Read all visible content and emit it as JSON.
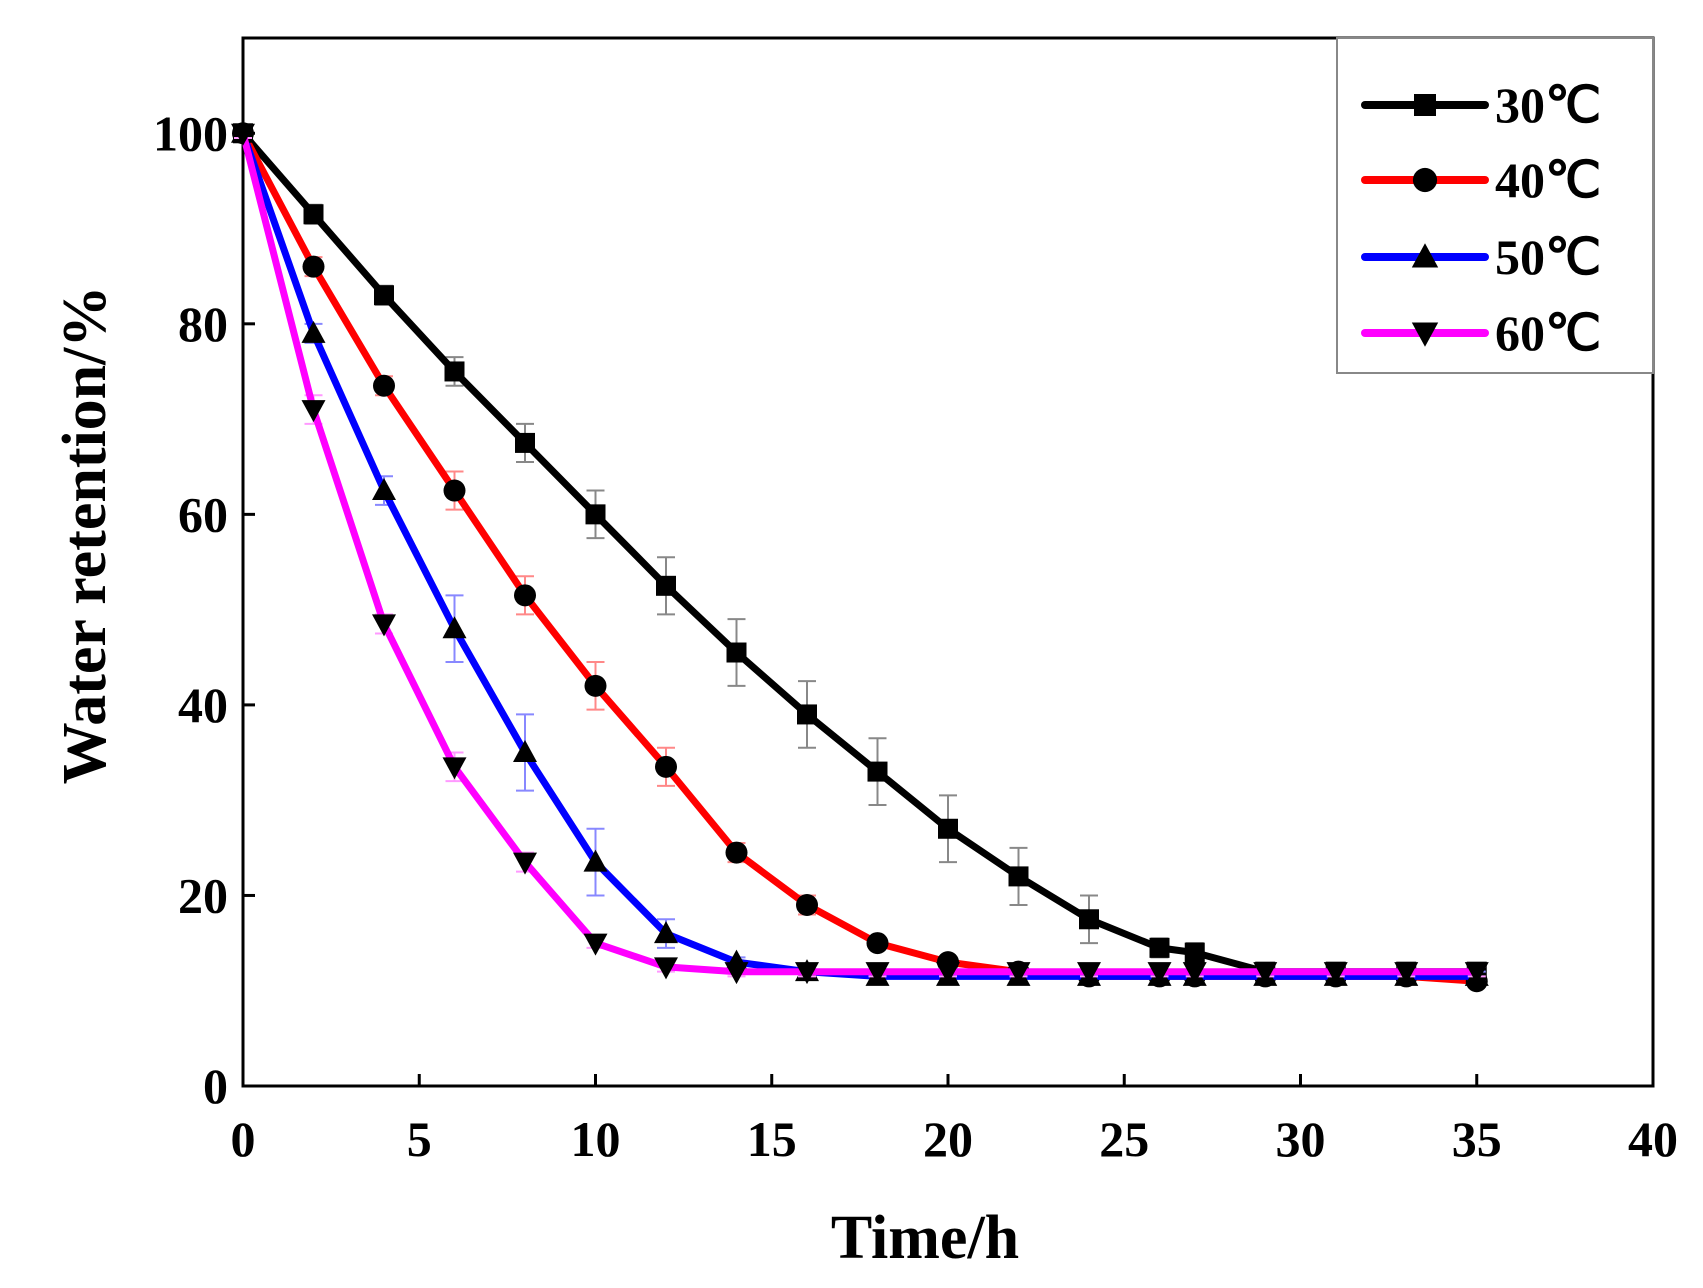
{
  "chart_data": {
    "type": "line",
    "title": "",
    "xlabel": "Time/h",
    "ylabel": "Water retention/%",
    "xlim": [
      0,
      40
    ],
    "ylim": [
      0,
      110
    ],
    "xticks": [
      0,
      5,
      10,
      15,
      20,
      25,
      30,
      35,
      40
    ],
    "yticks": [
      0,
      20,
      40,
      60,
      80,
      100
    ],
    "grid": false,
    "legend_position": "top-right",
    "series": [
      {
        "name": "30℃",
        "color": "#000000",
        "marker": "square",
        "error_color": "#888888",
        "x": [
          0,
          2,
          4,
          6,
          8,
          10,
          12,
          14,
          16,
          18,
          20,
          22,
          24,
          26,
          27,
          29,
          31,
          33,
          35
        ],
        "y": [
          100,
          91.5,
          83,
          75,
          67.5,
          60,
          52.5,
          45.5,
          39,
          33,
          27,
          22,
          17.5,
          14.5,
          14,
          12,
          12,
          12,
          12
        ],
        "err": [
          0.5,
          1,
          1,
          1.5,
          2,
          2.5,
          3,
          3.5,
          3.5,
          3.5,
          3.5,
          3,
          2.5,
          1,
          1,
          0.5,
          0.5,
          0.5,
          0.5
        ]
      },
      {
        "name": "40℃",
        "color": "#ff0000",
        "marker": "circle",
        "error_color": "#ff8888",
        "x": [
          0,
          2,
          4,
          6,
          8,
          10,
          12,
          14,
          16,
          18,
          20,
          22,
          24,
          26,
          27,
          29,
          31,
          33,
          35
        ],
        "y": [
          100,
          86,
          73.5,
          62.5,
          51.5,
          42,
          33.5,
          24.5,
          19,
          15,
          13,
          12,
          11.5,
          11.5,
          11.5,
          11.5,
          11.5,
          11.5,
          11
        ],
        "err": [
          0.5,
          1,
          1,
          2,
          2,
          2.5,
          2,
          1,
          1,
          0.5,
          0.5,
          0.5,
          0.5,
          0.5,
          0.5,
          0.5,
          0.5,
          0.5,
          0.5
        ]
      },
      {
        "name": "50℃",
        "color": "#0000ff",
        "marker": "triangle-up",
        "error_color": "#8888ff",
        "x": [
          0,
          2,
          4,
          6,
          8,
          10,
          12,
          14,
          16,
          18,
          20,
          22,
          24,
          26,
          27,
          29,
          31,
          33,
          35
        ],
        "y": [
          100,
          79,
          62.5,
          48,
          35,
          23.5,
          16,
          13,
          12,
          11.5,
          11.5,
          11.5,
          11.5,
          11.5,
          11.5,
          11.5,
          11.5,
          11.5,
          11.5
        ],
        "err": [
          0.5,
          1,
          1.5,
          3.5,
          4,
          3.5,
          1.5,
          0.5,
          0.5,
          0.5,
          0.5,
          0.5,
          0.5,
          0.5,
          0.5,
          0.5,
          0.5,
          0.5,
          0.5
        ]
      },
      {
        "name": "60℃",
        "color": "#ff00ff",
        "marker": "triangle-down",
        "error_color": "#ff99ff",
        "x": [
          0,
          2,
          4,
          6,
          8,
          10,
          12,
          14,
          16,
          18,
          20,
          22,
          24,
          26,
          27,
          29,
          31,
          33,
          35
        ],
        "y": [
          100,
          71,
          48.5,
          33.5,
          23.5,
          15,
          12.5,
          12,
          12,
          12,
          12,
          12,
          12,
          12,
          12,
          12,
          12,
          12,
          12
        ],
        "err": [
          0.5,
          1.5,
          1,
          1.5,
          1,
          0.5,
          0.5,
          0.5,
          0.5,
          0.5,
          0.5,
          0.5,
          0.5,
          0.5,
          0.5,
          0.5,
          0.5,
          0.5,
          0.5
        ]
      }
    ]
  }
}
